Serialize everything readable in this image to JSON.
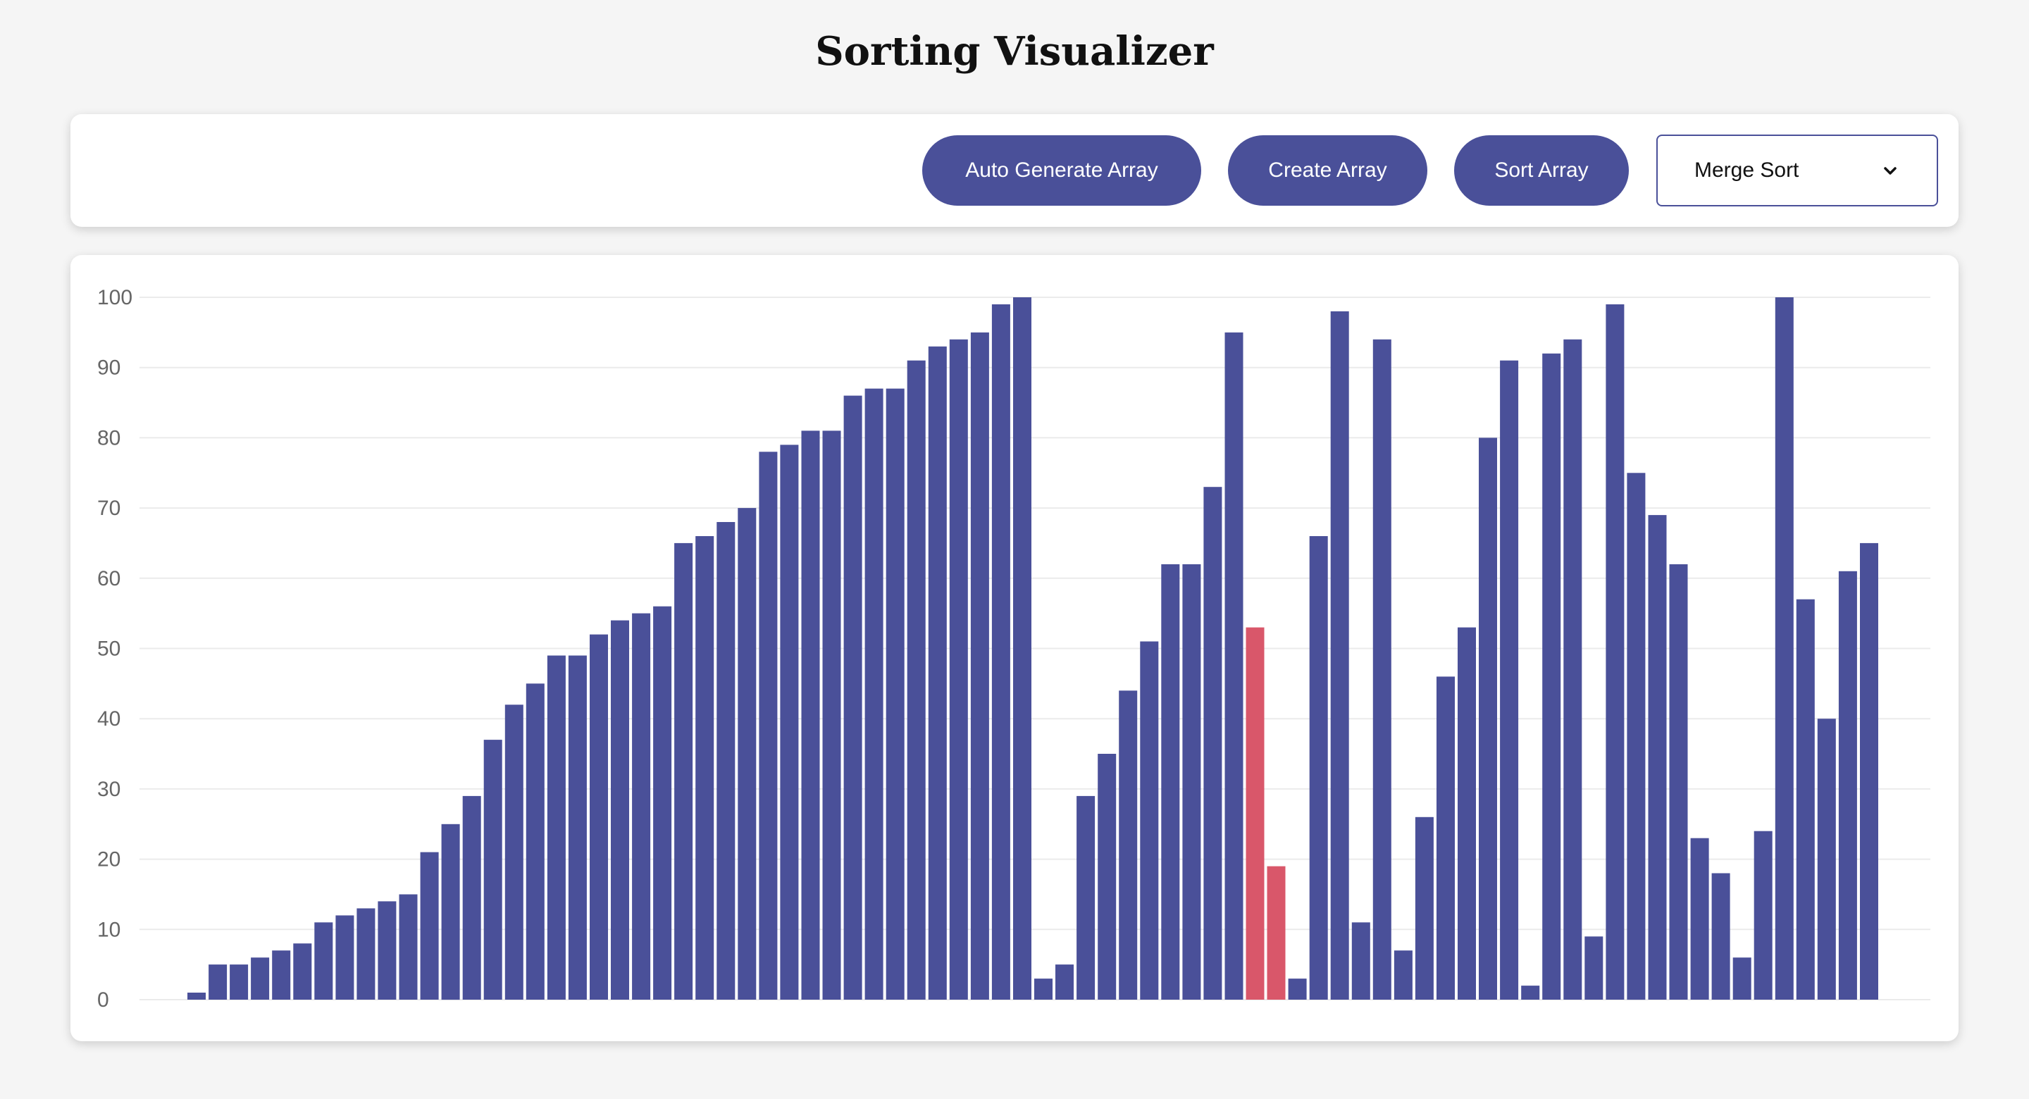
{
  "title": "Sorting Visualizer",
  "toolbar": {
    "auto_generate_label": "Auto Generate Array",
    "create_label": "Create Array",
    "sort_label": "Sort Array",
    "algorithm_selected": "Merge Sort"
  },
  "icons": {
    "dropdown": "chevron-down-icon"
  },
  "colors": {
    "accent": "#4a5099",
    "highlight": "#d9576a",
    "page_background": "#f5f5f5"
  },
  "chart_data": {
    "type": "bar",
    "ylim": [
      0,
      100
    ],
    "yticks": [
      0,
      10,
      20,
      30,
      40,
      50,
      60,
      70,
      80,
      90,
      100
    ],
    "grid": true,
    "values": [
      1,
      5,
      5,
      6,
      7,
      8,
      11,
      12,
      13,
      14,
      15,
      21,
      25,
      29,
      37,
      42,
      45,
      49,
      49,
      52,
      54,
      55,
      56,
      65,
      66,
      68,
      70,
      78,
      79,
      81,
      81,
      86,
      87,
      87,
      91,
      93,
      94,
      95,
      99,
      100,
      3,
      5,
      29,
      35,
      44,
      51,
      62,
      62,
      73,
      95,
      53,
      19,
      3,
      66,
      98,
      11,
      94,
      7,
      26,
      46,
      53,
      80,
      91,
      2,
      92,
      94,
      9,
      99,
      75,
      69,
      62,
      23,
      18,
      6,
      24,
      100,
      57,
      40,
      61,
      65
    ],
    "highlighted_indices": [
      50,
      51
    ]
  }
}
